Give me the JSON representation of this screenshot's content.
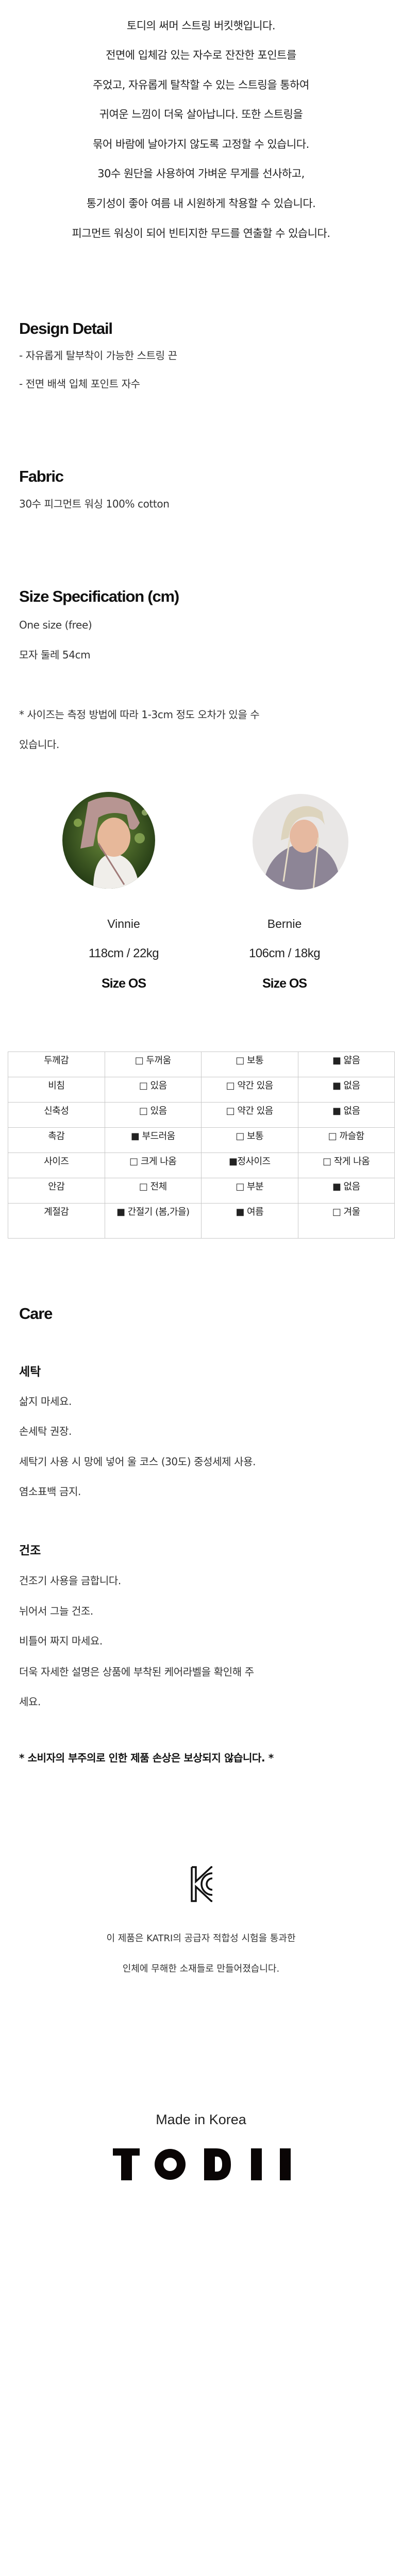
{
  "intro": [
    "토디의 써머 스트링 버킷햇입니다.",
    "전면에 입체감 있는 자수로 잔잔한 포인트를",
    "주었고, 자유롭게 탈착할 수 있는 스트링을 통하여",
    "귀여운 느낌이 더욱 살아납니다. 또한 스트링을",
    "묶어 바람에 날아가지 않도록 고정할 수 있습니다.",
    "30수 원단을 사용하여 가벼운 무게를 선사하고,",
    "통기성이 좋아 여름 내 시원하게 착용할 수 있습니다.",
    "피그먼트 워싱이 되어 빈티지한 무드를 연출할 수 있습니다."
  ],
  "design_detail": {
    "title": "Design Detail",
    "items": [
      "- 자유롭게 탈부착이 가능한 스트링 끈",
      "- 전면 배색 입체 포인트 자수"
    ]
  },
  "fabric": {
    "title": "Fabric",
    "text": "30수 피그먼트 워싱 100% cotton"
  },
  "size_spec": {
    "title": "Size Specification (cm)",
    "size": "One size (free)",
    "circumference": "모자 둘레 54cm",
    "note_line1": "* 사이즈는 측정 방법에 따라 1-3cm 정도 오차가 있을 수",
    "note_line2": "있습니다."
  },
  "models": [
    {
      "name": "Vinnie",
      "measure": "118cm / 22kg",
      "size": "Size OS"
    },
    {
      "name": "Bernie",
      "measure": "106cm / 18kg",
      "size": "Size OS"
    }
  ],
  "spec_table": {
    "rows": [
      [
        "두께감",
        "□ 두꺼움",
        "□ 보통",
        "■ 얇음"
      ],
      [
        "비침",
        "□ 있음",
        "□ 약간 있음",
        "■ 없음"
      ],
      [
        "신축성",
        "□ 있음",
        "□ 약간 있음",
        "■ 없음"
      ],
      [
        "촉감",
        "■ 부드러움",
        "□ 보통",
        "□ 까슬함"
      ],
      [
        "사이즈",
        "□ 크게 나옴",
        "■정사이즈",
        "□ 작게 나옴"
      ],
      [
        "안감",
        "□ 전체",
        "□ 부분",
        "■ 없음"
      ],
      [
        "계절감",
        "■ 간절기 (봄,가을)",
        "■ 여름",
        "□ 겨울"
      ]
    ]
  },
  "care": {
    "title": "Care",
    "wash_title": "세탁",
    "wash": [
      "삶지 마세요.",
      "손세탁 권장.",
      "세탁기 사용 시 망에 넣어 울 코스 (30도) 중성세제 사용.",
      "염소표백 금지."
    ],
    "dry_title": "건조",
    "dry": [
      "건조기 사용을 금합니다.",
      "뉘어서 그늘 건조.",
      "비틀어 짜지 마세요.",
      "더욱 자세한 설명은 상품에 부착된 케어라벨을 확인해 주",
      "세요."
    ],
    "disclaimer": "* 소비자의 부주의로 인한 제품 손상은 보상되지 않습니다. *"
  },
  "certification": {
    "icon": "kc-mark-icon",
    "line1": "이 제품은 KATRI의 공급자 적합성 시험을 통과한",
    "line2": "인체에 무해한 소재들로 만들어졌습니다."
  },
  "footer": {
    "made_in": "Made in Korea",
    "brand_logo": "TODII"
  }
}
